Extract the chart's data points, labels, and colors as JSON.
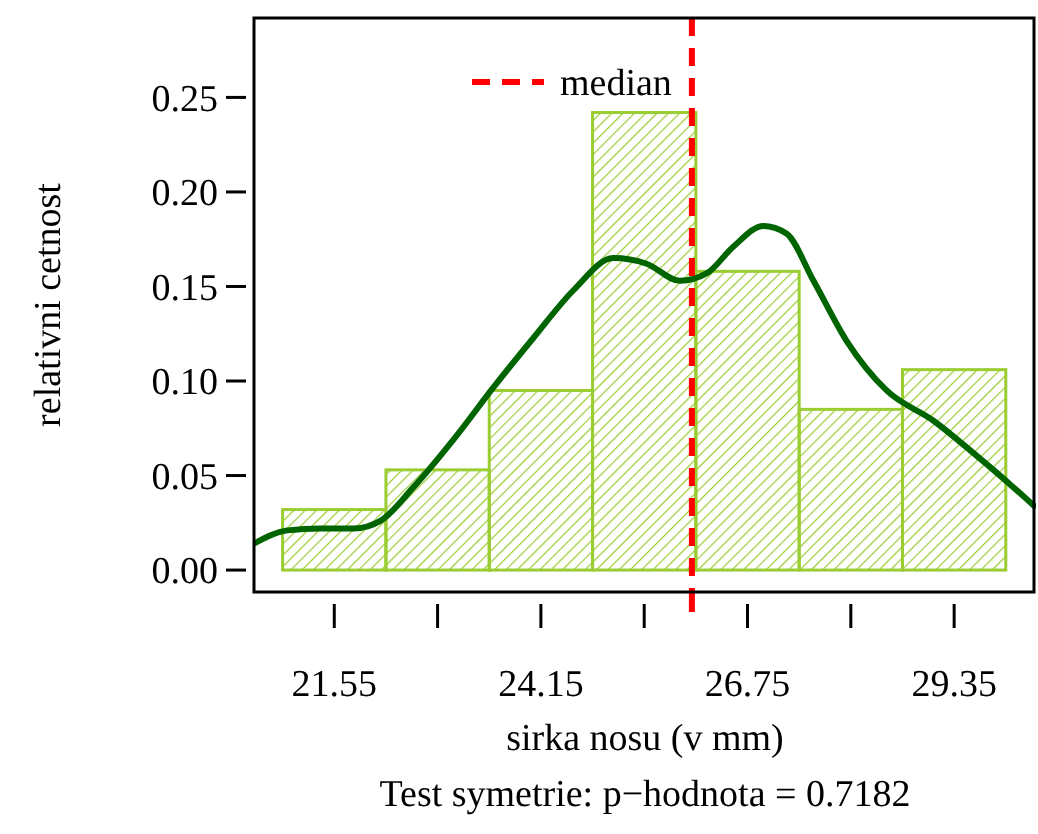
{
  "chart_data": {
    "type": "histogram",
    "xlabel": "sirka nosu (v mm)",
    "ylabel": "relativni cetnost",
    "annotations": [
      "Test symetrie: p−hodnota = 0.7182"
    ],
    "xlim": [
      20.54,
      30.38
    ],
    "ylim": [
      -0.0116,
      0.292
    ],
    "xticks": [
      21.55,
      {
        "value": 22.85,
        "label": null
      },
      24.15,
      {
        "value": 25.45,
        "label": null
      },
      26.75,
      {
        "value": 28.05,
        "label": null
      },
      29.35
    ],
    "yticks": [
      {
        "value": 0,
        "label": "0.00"
      },
      {
        "value": 0.05,
        "label": "0.05"
      },
      {
        "value": 0.1,
        "label": "0.10"
      },
      {
        "value": 0.15,
        "label": "0.15"
      },
      {
        "value": 0.2,
        "label": "0.20"
      },
      {
        "value": 0.25,
        "label": "0.25"
      }
    ],
    "series": [
      {
        "color": "#9acd32",
        "bins": [
          20.9,
          22.2,
          23.5,
          24.8,
          26.1,
          27.4,
          28.7,
          30.0
        ],
        "values": [
          0.032,
          0.053,
          0.095,
          0.242,
          0.158,
          0.085,
          0.106
        ]
      },
      {
        "type": "line",
        "color": "#006400",
        "x": [
          20.54,
          20.96,
          21.38,
          21.8,
          22.13,
          22.55,
          23.05,
          23.56,
          24.06,
          24.56,
          25.06,
          25.48,
          25.9,
          26.24,
          26.57,
          26.95,
          27.24,
          27.58,
          28.0,
          28.5,
          29.09,
          29.59,
          30.09,
          30.38
        ],
        "values": [
          0.014,
          0.021,
          0.022,
          0.022,
          0.026,
          0.044,
          0.069,
          0.097,
          0.123,
          0.148,
          0.165,
          0.162,
          0.153,
          0.157,
          0.171,
          0.182,
          0.178,
          0.153,
          0.121,
          0.095,
          0.079,
          0.062,
          0.044,
          0.033
        ]
      }
    ],
    "ref_lines": [
      {
        "axis": "x",
        "value": 26.05,
        "label": "median",
        "color": "#ff0000",
        "line_style": "dashed"
      }
    ],
    "legend": "top left",
    "grid": false
  }
}
